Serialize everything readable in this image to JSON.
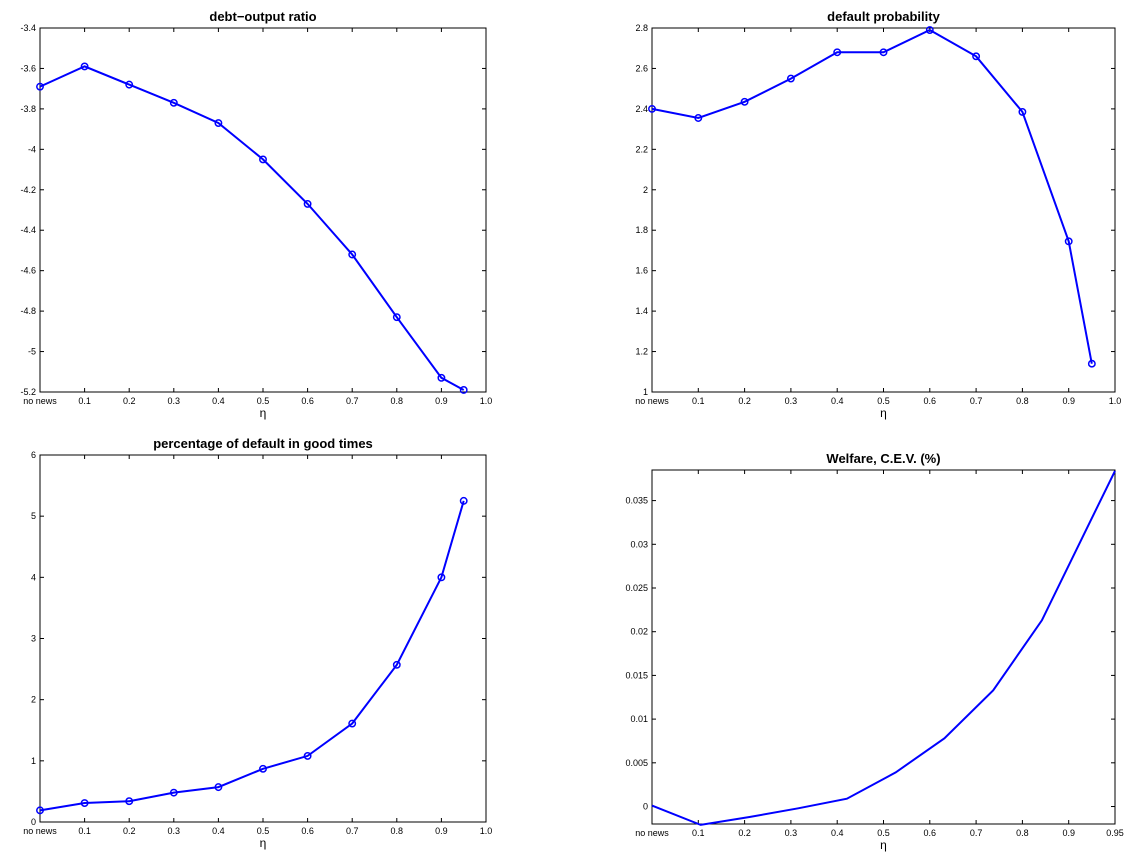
{
  "chart_data": [
    {
      "type": "line",
      "title": "debt−output ratio",
      "xlabel": "η",
      "ylabel": "",
      "x": [
        0,
        0.1,
        0.2,
        0.3,
        0.4,
        0.5,
        0.6,
        0.7,
        0.8,
        0.9,
        0.95
      ],
      "values": [
        -3.69,
        -3.59,
        -3.68,
        -3.77,
        -3.87,
        -4.05,
        -4.27,
        -4.52,
        -4.83,
        -5.13,
        -5.19
      ],
      "markers": true,
      "xlim": [
        0,
        1.0
      ],
      "ylim": [
        -5.2,
        -3.4
      ],
      "xticks": [
        "no news",
        "0.1",
        "0.2",
        "0.3",
        "0.4",
        "0.5",
        "0.6",
        "0.7",
        "0.8",
        "0.9",
        "1.0"
      ],
      "yticks": [
        "-5.2",
        "-5",
        "-4.8",
        "-4.6",
        "-4.4",
        "-4.2",
        "-4",
        "-3.8",
        "-3.6",
        "-3.4"
      ],
      "color": "#0000ff"
    },
    {
      "type": "line",
      "title": "default probability",
      "xlabel": "η",
      "ylabel": "",
      "x": [
        0,
        0.1,
        0.2,
        0.3,
        0.4,
        0.5,
        0.6,
        0.7,
        0.8,
        0.9,
        0.95
      ],
      "values": [
        2.4,
        2.355,
        2.435,
        2.55,
        2.68,
        2.68,
        2.79,
        2.66,
        2.385,
        1.745,
        1.14
      ],
      "markers": true,
      "xlim": [
        0,
        1.0
      ],
      "ylim": [
        1,
        2.8
      ],
      "xticks": [
        "no news",
        "0.1",
        "0.2",
        "0.3",
        "0.4",
        "0.5",
        "0.6",
        "0.7",
        "0.8",
        "0.9",
        "1.0"
      ],
      "yticks": [
        "1",
        "1.2",
        "1.4",
        "1.6",
        "1.8",
        "2",
        "2.2",
        "2.4",
        "2.6",
        "2.8"
      ],
      "color": "#0000ff"
    },
    {
      "type": "line",
      "title": "percentage of default in good times",
      "xlabel": "η",
      "ylabel": "",
      "x": [
        0,
        0.1,
        0.2,
        0.3,
        0.4,
        0.5,
        0.6,
        0.7,
        0.8,
        0.9,
        0.95
      ],
      "values": [
        0.19,
        0.31,
        0.34,
        0.48,
        0.57,
        0.87,
        1.08,
        1.61,
        2.57,
        4.0,
        5.25
      ],
      "markers": true,
      "xlim": [
        0,
        1.0
      ],
      "ylim": [
        0,
        6
      ],
      "xticks": [
        "no news",
        "0.1",
        "0.2",
        "0.3",
        "0.4",
        "0.5",
        "0.6",
        "0.7",
        "0.8",
        "0.9",
        "1.0"
      ],
      "yticks": [
        "0",
        "1",
        "2",
        "3",
        "4",
        "5",
        "6"
      ],
      "color": "#0000ff"
    },
    {
      "type": "line",
      "title": "Welfare, C.E.V. (%)",
      "xlabel": "η",
      "ylabel": "",
      "x": [
        0,
        0.1,
        0.2,
        0.3,
        0.4,
        0.5,
        0.6,
        0.7,
        0.8,
        0.9,
        0.95
      ],
      "values": [
        0.0001,
        -0.0021,
        -0.0012,
        -0.0002,
        0.0009,
        0.0039,
        0.0078,
        0.0133,
        0.0213,
        0.0327,
        0.0384
      ],
      "markers": false,
      "xlim": [
        0,
        0.95
      ],
      "ylim": [
        -0.002,
        0.0385
      ],
      "xticks": [
        "no news",
        "0.1",
        "0.2",
        "0.3",
        "0.4",
        "0.5",
        "0.6",
        "0.7",
        "0.8",
        "0.9",
        "0.95"
      ],
      "yticks": [
        "0",
        "0.005",
        "0.01",
        "0.015",
        "0.02",
        "0.025",
        "0.03",
        "0.035"
      ],
      "color": "#0000ff"
    }
  ]
}
